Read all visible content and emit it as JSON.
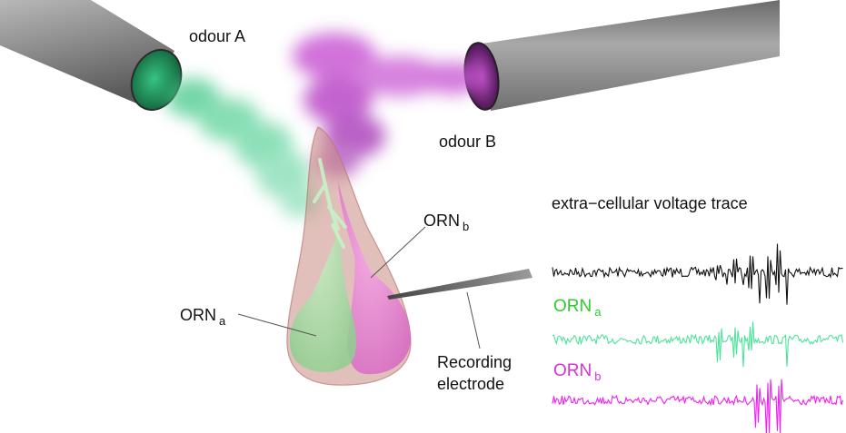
{
  "labels": {
    "odour_a": "odour A",
    "odour_b": "odour B",
    "orn_a_main": "ORN",
    "orn_a_sub": "a",
    "orn_b_main": "ORN",
    "orn_b_sub": "b",
    "recording_line1": "Recording",
    "recording_line2": "electrode",
    "trace_title": "extra−cellular voltage trace",
    "trace_orn_a_main": "ORN",
    "trace_orn_a_sub": "a",
    "trace_orn_b_main": "ORN",
    "trace_orn_b_sub": "b"
  },
  "colors": {
    "odour_a": "#3fbf7a",
    "odour_b": "#b63cc4",
    "orn_a_text": "#2ecc2e",
    "orn_b_text": "#d633d6",
    "trace_black": "#111111",
    "trace_green": "#4de39a",
    "trace_magenta": "#ee22ee",
    "sensillum": "#c98a82",
    "tube": "#8c8c8c"
  }
}
